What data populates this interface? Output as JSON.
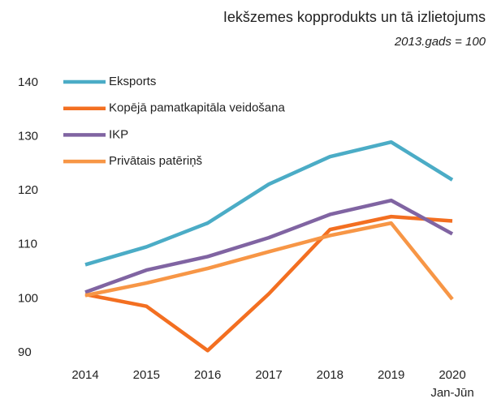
{
  "chart_data": {
    "type": "line",
    "title": "Iekšzemes kopprodukts un tā izlietojums",
    "subtitle": "2013.gads = 100",
    "categories": [
      "2014",
      "2015",
      "2016",
      "2017",
      "2018",
      "2019",
      "2020\nJan-Jūn"
    ],
    "series": [
      {
        "name": "Eksports",
        "color": "#4bacc6",
        "values": [
          106.3,
          109.6,
          114,
          121.2,
          126.3,
          129,
          122
        ]
      },
      {
        "name": "Kopējā pamatkapitāla veidošana",
        "color": "#f36f21",
        "values": [
          100.8,
          98.6,
          90.4,
          100.9,
          112.8,
          115.2,
          114.4
        ]
      },
      {
        "name": "IKP",
        "color": "#8064a2",
        "values": [
          101.2,
          105.3,
          107.8,
          111.3,
          115.6,
          118.2,
          112
        ]
      },
      {
        "name": "Privātais patēriņš",
        "color": "#f79646",
        "values": [
          100.6,
          102.9,
          105.6,
          108.7,
          111.7,
          114,
          99.9
        ]
      }
    ],
    "ylim": [
      88,
      141
    ],
    "yticks": [
      90,
      100,
      110,
      120,
      130,
      140
    ],
    "grid": false,
    "legend": "top-left"
  }
}
